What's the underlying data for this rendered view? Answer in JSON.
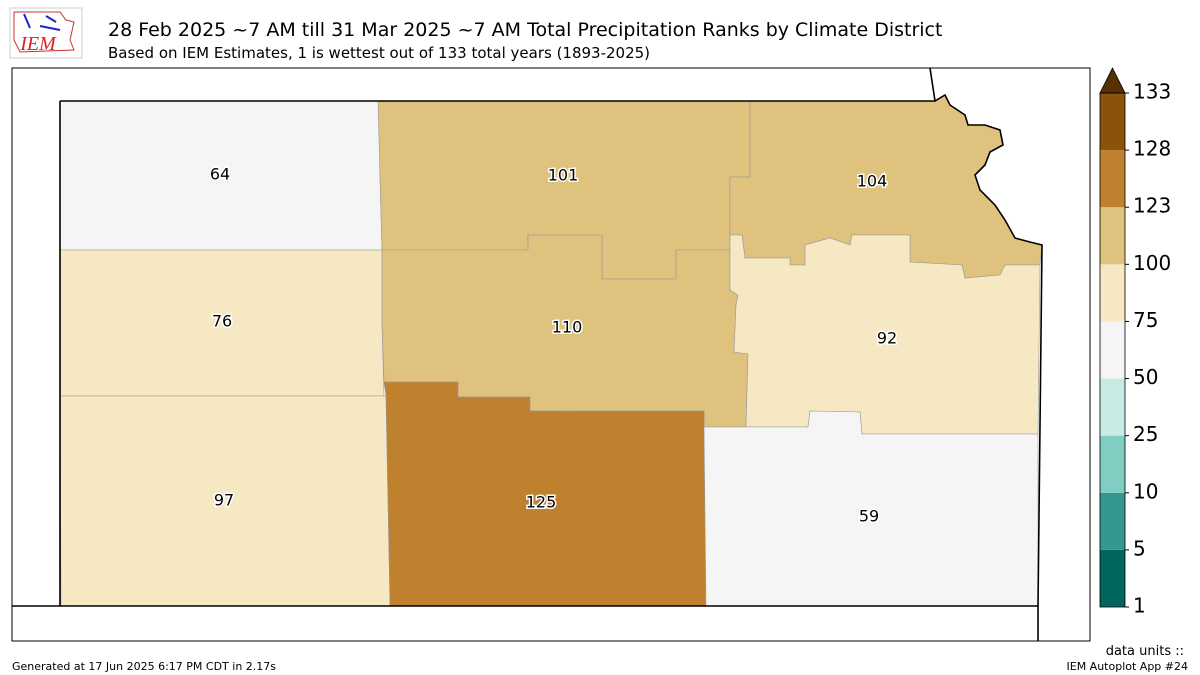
{
  "logo": "IEM",
  "title": "28 Feb 2025 ~7 AM till 31 Mar 2025 ~7 AM Total Precipitation Ranks by Climate District",
  "subtitle": "Based on IEM Estimates, 1 is wettest out of 133 total years (1893-2025)",
  "districts": [
    64,
    101,
    104,
    76,
    110,
    92,
    97,
    125,
    59
  ],
  "colorbar": {
    "ticks": [
      1,
      5,
      10,
      25,
      50,
      75,
      100,
      123,
      128,
      133
    ],
    "colors": [
      "#01665e",
      "#35978f",
      "#80cdc1",
      "#c7eae5",
      "#f5f5f5",
      "#f6e8c3",
      "#dfc27d",
      "#bf812d",
      "#8c510a"
    ],
    "extend_color": "#543005"
  },
  "units_label": "data units ::",
  "footer_left": "Generated at 17 Jun 2025 6:17 PM CDT in 2.17s",
  "footer_right": "IEM Autoplot App #24"
}
